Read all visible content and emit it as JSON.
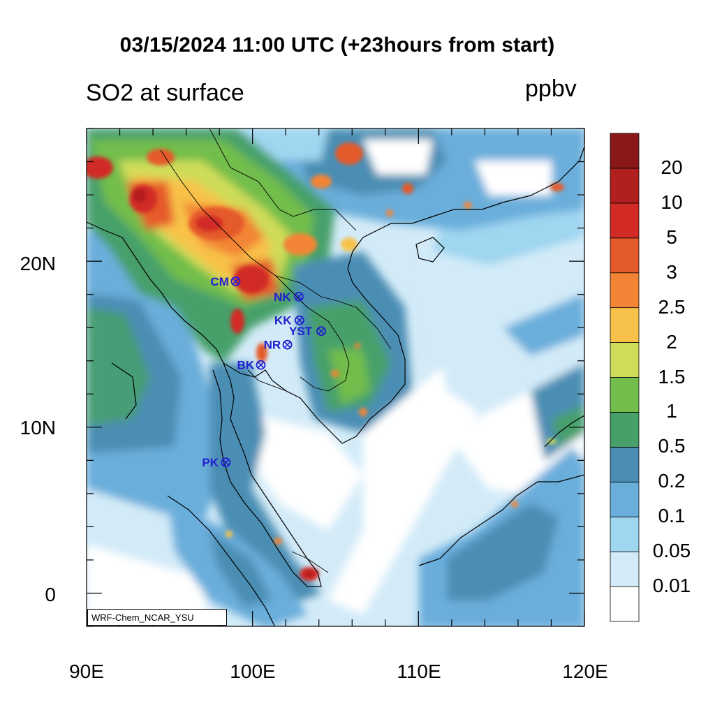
{
  "header": {
    "title": "03/15/2024 11:00 UTC (+23hours from start)",
    "subtitle": "SO2 at surface",
    "units": "ppbv",
    "credit": "WRF-Chem_NCAR_YSU"
  },
  "axes": {
    "lat_labels": [
      "20N",
      "10N",
      "0"
    ],
    "lon_labels": [
      "90E",
      "100E",
      "110E",
      "120E"
    ],
    "lat_range": [
      -2,
      28
    ],
    "lon_range": [
      90,
      120
    ]
  },
  "colorbar": {
    "levels": [
      "0.01",
      "0.05",
      "0.1",
      "0.2",
      "0.5",
      "1",
      "1.5",
      "2",
      "2.5",
      "3",
      "5",
      "10",
      "20"
    ],
    "colors": [
      "#ffffff",
      "#d3ebf8",
      "#9fd6f0",
      "#6aaedb",
      "#4b8eb4",
      "#47a06a",
      "#72bd4c",
      "#cfdc5a",
      "#f8c24a",
      "#f28535",
      "#e55a2b",
      "#d22b25",
      "#b21f1f",
      "#8b1818"
    ]
  },
  "stations": [
    {
      "code": "CM"
    },
    {
      "code": "NK"
    },
    {
      "code": "KK"
    },
    {
      "code": "YST"
    },
    {
      "code": "NR"
    },
    {
      "code": "BK"
    },
    {
      "code": "PK"
    }
  ]
}
